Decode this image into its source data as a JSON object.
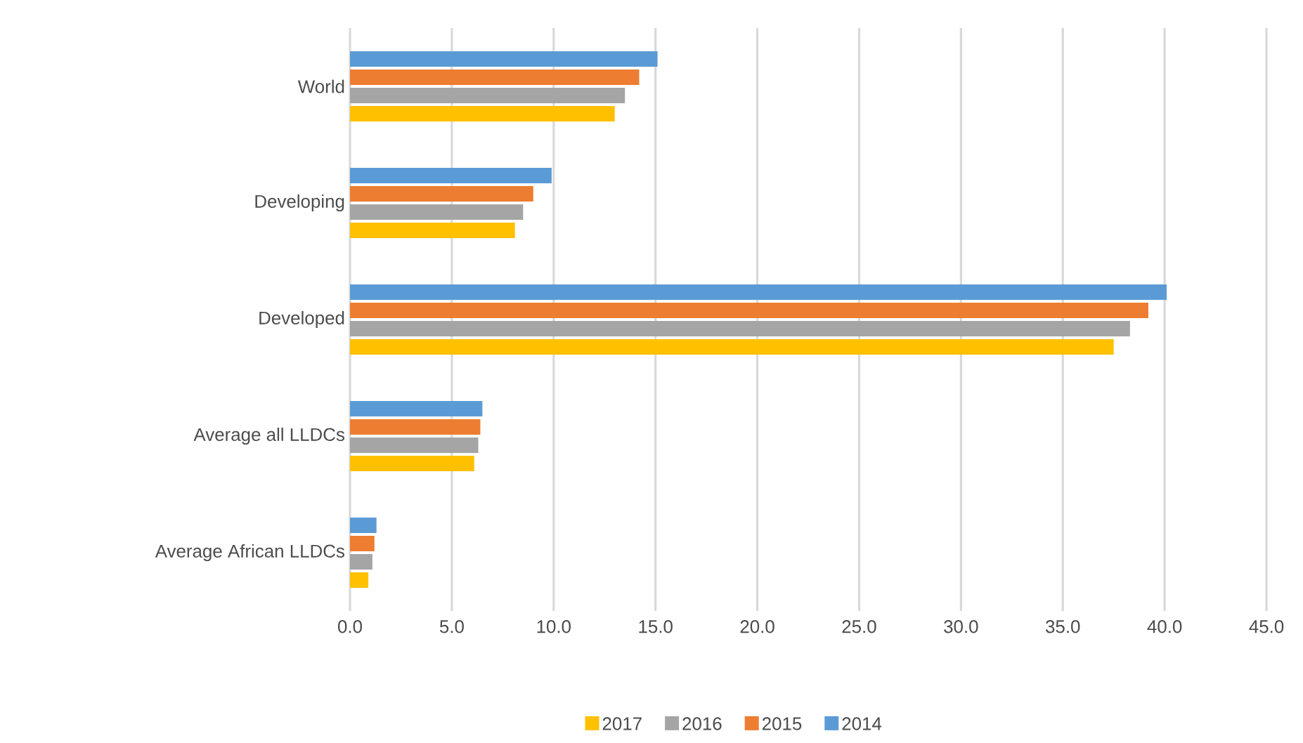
{
  "chart_data": {
    "type": "bar",
    "orientation": "horizontal",
    "categories": [
      "World",
      "Developing",
      "Developed",
      "Average all LLDCs",
      "Average African LLDCs"
    ],
    "series": [
      {
        "name": "2017",
        "color": "#ffc000",
        "values": [
          13.0,
          8.1,
          37.5,
          6.1,
          0.9
        ]
      },
      {
        "name": "2016",
        "color": "#a5a5a5",
        "values": [
          13.5,
          8.5,
          38.3,
          6.3,
          1.1
        ]
      },
      {
        "name": "2015",
        "color": "#ed7d31",
        "values": [
          14.2,
          9.0,
          39.2,
          6.4,
          1.2
        ]
      },
      {
        "name": "2014",
        "color": "#5b9bd5",
        "values": [
          15.1,
          9.9,
          40.1,
          6.5,
          1.3
        ]
      }
    ],
    "xlim": [
      0,
      45
    ],
    "xticks": [
      {
        "value": 0,
        "label": "0.0"
      },
      {
        "value": 5,
        "label": "5.0"
      },
      {
        "value": 10,
        "label": "10.0"
      },
      {
        "value": 15,
        "label": "15.0"
      },
      {
        "value": 20,
        "label": "20.0"
      },
      {
        "value": 25,
        "label": "25.0"
      },
      {
        "value": 30,
        "label": "30.0"
      },
      {
        "value": 35,
        "label": "35.0"
      },
      {
        "value": 40,
        "label": "40.0"
      },
      {
        "value": 45,
        "label": "45.0"
      }
    ],
    "grid": "x",
    "legend": "bottom"
  }
}
